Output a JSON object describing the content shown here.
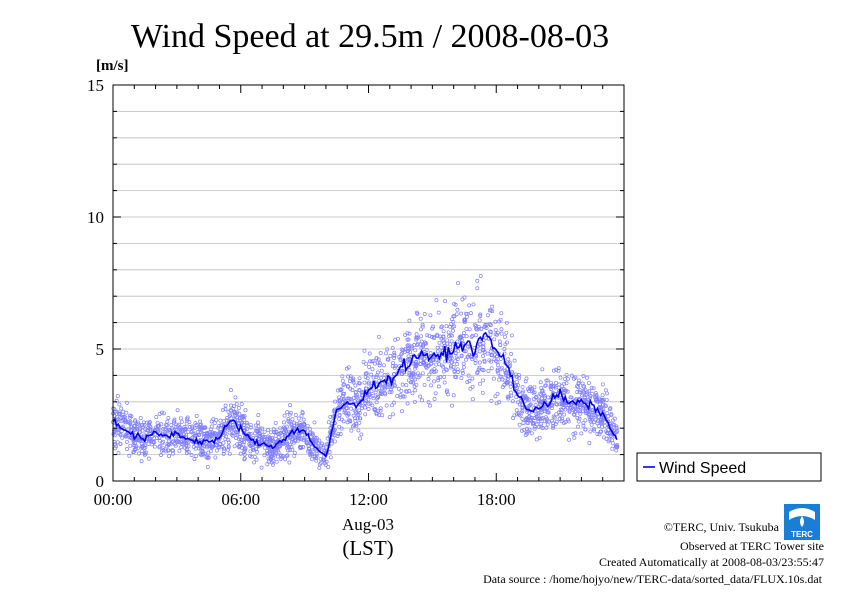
{
  "chart_data": {
    "type": "line",
    "title": "Wind Speed at 29.5m / 2008-08-03",
    "ylabel": "[m/s]",
    "xlabel": "Aug-03",
    "xlabel_sub": "(LST)",
    "ylim": [
      0,
      15
    ],
    "xlim_hours": [
      0,
      24
    ],
    "y_ticks": [
      "0",
      "5",
      "10",
      "15"
    ],
    "x_ticks": [
      {
        "hour": 0,
        "label": "00:00"
      },
      {
        "hour": 6,
        "label": "06:00"
      },
      {
        "hour": 12,
        "label": "12:00"
      },
      {
        "hour": 18,
        "label": "18:00"
      }
    ],
    "grid": true,
    "legend": {
      "position": "right",
      "label": "Wind Speed"
    },
    "series": [
      {
        "name": "Wind Speed",
        "color": "#0000ee",
        "scatter_color": "#7f7fff",
        "x": [
          0.0,
          0.5,
          1.0,
          1.5,
          2.0,
          2.5,
          3.0,
          3.5,
          4.0,
          4.5,
          5.0,
          5.5,
          6.0,
          6.5,
          7.0,
          7.5,
          8.0,
          8.5,
          9.0,
          9.5,
          10.0,
          10.5,
          11.0,
          11.5,
          12.0,
          12.5,
          13.0,
          13.5,
          14.0,
          14.5,
          15.0,
          15.5,
          16.0,
          16.5,
          17.0,
          17.5,
          18.0,
          18.5,
          19.0,
          19.5,
          20.0,
          20.5,
          21.0,
          21.5,
          22.0,
          22.5,
          23.0,
          23.5
        ],
        "y": [
          2.3,
          2.0,
          1.7,
          1.6,
          1.8,
          1.7,
          1.8,
          1.6,
          1.5,
          1.5,
          1.6,
          2.3,
          2.0,
          1.5,
          1.4,
          1.3,
          1.6,
          1.9,
          1.9,
          1.3,
          0.9,
          2.6,
          3.0,
          2.8,
          3.5,
          3.8,
          3.8,
          4.3,
          4.5,
          4.9,
          4.6,
          4.8,
          5.0,
          5.2,
          5.0,
          5.6,
          4.9,
          4.5,
          3.2,
          2.7,
          2.8,
          3.0,
          3.3,
          2.9,
          3.0,
          2.8,
          2.6,
          1.7
        ]
      }
    ]
  },
  "credits": {
    "line1": "©TERC, Univ. Tsukuba",
    "line2": "Observed at TERC Tower site",
    "line3": "Created Automatically at 2008-08-03/23:55:47",
    "line4": "Data source : /home/hojyo/new/TERC-data/sorted_data/FLUX.10s.dat"
  },
  "logo": {
    "text": "TERC",
    "color": "#1a7fd4"
  }
}
